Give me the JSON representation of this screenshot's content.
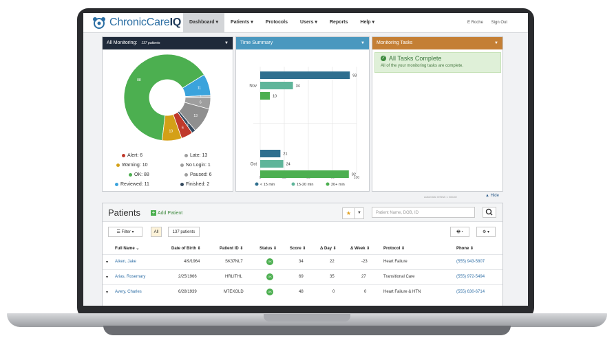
{
  "nav": {
    "logo_main": "ChronicCare",
    "logo_bold": "IQ",
    "items": [
      "Dashboard ▾",
      "Patients ▾",
      "Protocols",
      "Users ▾",
      "Reports",
      "Help ▾"
    ],
    "user": "E Roche",
    "sign_out": "Sign Out"
  },
  "monitoring": {
    "title": "All Monitoring:",
    "count": "137 patients",
    "legend": [
      {
        "label": "Alert: 6",
        "color": "#c0392b"
      },
      {
        "label": "Late: 13",
        "color": "#9e9e9e"
      },
      {
        "label": "Warning: 10",
        "color": "#d4a017"
      },
      {
        "label": "No Login: 1",
        "color": "#9e9e9e"
      },
      {
        "label": "OK: 88",
        "color": "#4caf50"
      },
      {
        "label": "Paused: 6",
        "color": "#9e9e9e"
      },
      {
        "label": "Reviewed: 11",
        "color": "#3ba3dc"
      },
      {
        "label": "Finished: 2",
        "color": "#34495e"
      }
    ]
  },
  "time_summary": {
    "title": "Time Summary"
  },
  "tasks": {
    "title": "Monitoring Tasks",
    "status": "All Tasks Complete",
    "message": "All of the your monitoring tasks are complete."
  },
  "hide_label": "▲ Hide",
  "auto_note": "Automatic refresh 1 minute",
  "patients": {
    "title": "Patients",
    "add_label": "Add Patient",
    "search_placeholder": "Patient Name, DOB, ID",
    "filter_label": "Filter",
    "all_label": "All",
    "count_label": "137 patients",
    "columns": [
      "Full Name ⌄",
      "Date of Birth ⇕",
      "Patient ID ⇕",
      "Status ⇕",
      "Score ⇕",
      "Δ Day ⇕",
      "Δ Week ⇕",
      "Protocol ⇕",
      "Phone ⇕"
    ],
    "rows": [
      {
        "name": "Aiken, Jake",
        "dob": "4/9/1964",
        "id": "SK37NL7",
        "status": "OK",
        "score": "34",
        "day": "22",
        "week": "-23",
        "protocol": "Heart Failure",
        "phone": "(555) 943-5807"
      },
      {
        "name": "Arias, Rosemary",
        "dob": "2/25/1966",
        "id": "HRLITHL",
        "status": "OK",
        "score": "69",
        "day": "35",
        "week": "27",
        "protocol": "Transitional Care",
        "phone": "(555) 972-5494"
      },
      {
        "name": "Avery, Charles",
        "dob": "6/28/1939",
        "id": "M7EXOLD",
        "status": "OK",
        "score": "48",
        "day": "0",
        "week": "0",
        "protocol": "Heart Failure & HTN",
        "phone": "(555) 630-6714"
      }
    ]
  },
  "chart_data": [
    {
      "type": "pie",
      "title": "",
      "categories": [
        "OK",
        "Reviewed",
        "No Login",
        "Paused",
        "Late",
        "Finished",
        "Alert",
        "Warning"
      ],
      "values": [
        88,
        11,
        1,
        6,
        13,
        2,
        6,
        10
      ],
      "colors": [
        "#4caf50",
        "#3ba3dc",
        "#bdbdbd",
        "#9e9e9e",
        "#8f8f8f",
        "#34495e",
        "#c0392b",
        "#d4a017"
      ],
      "inner_radius_ratio": 0.42,
      "slice_labels": [
        "88",
        "11",
        "1",
        "6",
        "13",
        "2",
        "6",
        "10"
      ]
    },
    {
      "type": "bar",
      "orientation": "horizontal",
      "categories": [
        "Nov",
        "Oct"
      ],
      "series": [
        {
          "name": "< 15 min",
          "values": [
            93,
            21
          ],
          "color": "#2f6f8f"
        },
        {
          "name": "15-20 min",
          "values": [
            34,
            24
          ],
          "color": "#5fb59a"
        },
        {
          "name": "20+ min",
          "values": [
            10,
            92
          ],
          "color": "#4caf50"
        }
      ],
      "xlim": [
        0,
        100
      ],
      "xticks": [
        0,
        25,
        50,
        75,
        100
      ],
      "legend_position": "bottom"
    }
  ]
}
